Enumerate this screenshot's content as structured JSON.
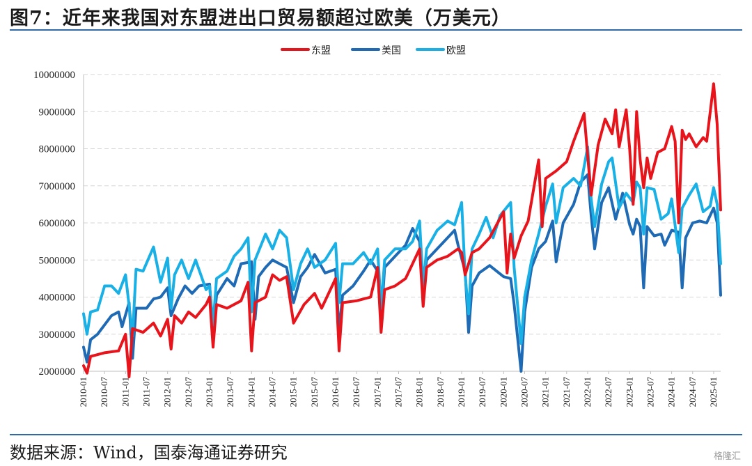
{
  "header": {
    "title": "图7：近年来我国对东盟进出口贸易额超过欧美（万美元）"
  },
  "footer": {
    "source": "数据来源：Wind，国泰海通证券研究",
    "watermark": "格隆汇"
  },
  "chart_data": {
    "type": "line",
    "ylim": [
      2000000,
      10000000
    ],
    "yticks": [
      "2000000",
      "3000000",
      "4000000",
      "5000000",
      "6000000",
      "7000000",
      "8000000",
      "9000000",
      "10000000"
    ],
    "xticks": [
      "2010-01",
      "2010-07",
      "2011-01",
      "2011-07",
      "2012-01",
      "2012-07",
      "2013-01",
      "2013-07",
      "2014-01",
      "2014-07",
      "2015-01",
      "2015-07",
      "2016-01",
      "2016-07",
      "2017-01",
      "2017-07",
      "2018-01",
      "2018-07",
      "2019-01",
      "2019-07",
      "2020-01",
      "2020-07",
      "2021-01",
      "2021-07",
      "2022-01",
      "2022-07",
      "2023-01",
      "2023-07",
      "2024-01",
      "2024-07",
      "2025-01"
    ],
    "grid": true,
    "legend_position": "top-center",
    "colors": {
      "asean": "#e8141b",
      "usa": "#1f6ab4",
      "eu": "#19b0e6"
    },
    "series": [
      {
        "name": "东盟",
        "key": "asean",
        "points": [
          [
            0,
            2150000
          ],
          [
            1,
            1950000
          ],
          [
            2,
            2400000
          ],
          [
            6,
            2500000
          ],
          [
            10,
            2550000
          ],
          [
            12,
            3000000
          ],
          [
            13,
            1850000
          ],
          [
            14,
            3150000
          ],
          [
            17,
            3050000
          ],
          [
            20,
            3300000
          ],
          [
            22,
            2950000
          ],
          [
            24,
            3400000
          ],
          [
            25,
            2600000
          ],
          [
            26,
            3500000
          ],
          [
            28,
            3300000
          ],
          [
            30,
            3600000
          ],
          [
            32,
            3450000
          ],
          [
            35,
            3800000
          ],
          [
            36,
            4000000
          ],
          [
            37,
            2650000
          ],
          [
            38,
            3800000
          ],
          [
            41,
            3700000
          ],
          [
            45,
            3900000
          ],
          [
            47,
            4400000
          ],
          [
            48,
            2550000
          ],
          [
            49,
            3850000
          ],
          [
            52,
            4000000
          ],
          [
            54,
            4600000
          ],
          [
            56,
            4450000
          ],
          [
            58,
            4550000
          ],
          [
            60,
            3300000
          ],
          [
            63,
            3800000
          ],
          [
            66,
            4100000
          ],
          [
            68,
            3700000
          ],
          [
            72,
            4500000
          ],
          [
            73,
            2550000
          ],
          [
            74,
            3850000
          ],
          [
            78,
            3900000
          ],
          [
            82,
            4000000
          ],
          [
            84,
            4800000
          ],
          [
            85,
            3050000
          ],
          [
            86,
            4200000
          ],
          [
            89,
            4300000
          ],
          [
            92,
            4500000
          ],
          [
            96,
            5300000
          ],
          [
            97,
            3750000
          ],
          [
            98,
            4800000
          ],
          [
            101,
            5000000
          ],
          [
            104,
            5100000
          ],
          [
            107,
            5300000
          ],
          [
            108,
            5200000
          ],
          [
            109,
            4600000
          ],
          [
            111,
            5200000
          ],
          [
            113,
            5300000
          ],
          [
            116,
            5600000
          ],
          [
            120,
            6300000
          ],
          [
            121,
            4650000
          ],
          [
            122,
            5700000
          ],
          [
            123,
            5050000
          ],
          [
            125,
            5650000
          ],
          [
            127,
            6050000
          ],
          [
            128,
            6600000
          ],
          [
            130,
            7700000
          ],
          [
            131,
            5900000
          ],
          [
            132,
            7200000
          ],
          [
            135,
            7400000
          ],
          [
            138,
            7650000
          ],
          [
            140,
            8200000
          ],
          [
            143,
            8950000
          ],
          [
            144,
            7800000
          ],
          [
            145,
            6750000
          ],
          [
            147,
            8100000
          ],
          [
            149,
            8800000
          ],
          [
            151,
            8400000
          ],
          [
            152,
            9050000
          ],
          [
            153,
            8050000
          ],
          [
            155,
            9050000
          ],
          [
            156,
            8000000
          ],
          [
            157,
            6500000
          ],
          [
            158,
            9000000
          ],
          [
            159,
            7700000
          ],
          [
            160,
            6950000
          ],
          [
            161,
            7750000
          ],
          [
            162,
            7200000
          ],
          [
            164,
            7900000
          ],
          [
            166,
            8000000
          ],
          [
            168,
            8600000
          ],
          [
            169,
            8200000
          ],
          [
            170,
            6000000
          ],
          [
            171,
            8500000
          ],
          [
            172,
            8250000
          ],
          [
            173,
            8400000
          ],
          [
            175,
            8050000
          ],
          [
            177,
            8300000
          ],
          [
            178,
            8200000
          ],
          [
            180,
            9750000
          ],
          [
            181,
            8650000
          ],
          [
            182,
            6350000
          ]
        ]
      },
      {
        "name": "美国",
        "key": "usa",
        "points": [
          [
            0,
            2650000
          ],
          [
            1,
            2250000
          ],
          [
            2,
            2850000
          ],
          [
            4,
            3000000
          ],
          [
            8,
            3500000
          ],
          [
            10,
            3600000
          ],
          [
            11,
            3200000
          ],
          [
            13,
            3850000
          ],
          [
            14,
            2350000
          ],
          [
            15,
            3700000
          ],
          [
            18,
            3700000
          ],
          [
            20,
            3950000
          ],
          [
            22,
            4000000
          ],
          [
            24,
            4250000
          ],
          [
            25,
            3500000
          ],
          [
            27,
            3950000
          ],
          [
            29,
            4300000
          ],
          [
            31,
            4100000
          ],
          [
            33,
            4300000
          ],
          [
            36,
            4350000
          ],
          [
            37,
            3050000
          ],
          [
            38,
            4050000
          ],
          [
            41,
            4500000
          ],
          [
            43,
            4300000
          ],
          [
            45,
            4900000
          ],
          [
            48,
            4950000
          ],
          [
            49,
            3400000
          ],
          [
            50,
            4550000
          ],
          [
            52,
            4800000
          ],
          [
            54,
            5000000
          ],
          [
            56,
            4900000
          ],
          [
            58,
            4800000
          ],
          [
            60,
            3850000
          ],
          [
            62,
            4550000
          ],
          [
            64,
            4800000
          ],
          [
            66,
            5150000
          ],
          [
            69,
            4650000
          ],
          [
            72,
            4750000
          ],
          [
            73,
            3050000
          ],
          [
            74,
            4050000
          ],
          [
            77,
            4300000
          ],
          [
            80,
            4700000
          ],
          [
            82,
            5000000
          ],
          [
            84,
            4700000
          ],
          [
            85,
            3300000
          ],
          [
            86,
            4800000
          ],
          [
            89,
            5100000
          ],
          [
            92,
            5400000
          ],
          [
            94,
            5850000
          ],
          [
            96,
            5500000
          ],
          [
            97,
            4350000
          ],
          [
            98,
            5000000
          ],
          [
            101,
            5300000
          ],
          [
            104,
            5600000
          ],
          [
            106,
            5800000
          ],
          [
            107,
            5400000
          ],
          [
            109,
            4700000
          ],
          [
            110,
            3050000
          ],
          [
            111,
            4300000
          ],
          [
            113,
            4650000
          ],
          [
            116,
            4850000
          ],
          [
            118,
            4700000
          ],
          [
            120,
            4550000
          ],
          [
            122,
            4500000
          ],
          [
            123,
            3800000
          ],
          [
            125,
            2000000
          ],
          [
            126,
            3600000
          ],
          [
            128,
            4800000
          ],
          [
            130,
            5300000
          ],
          [
            132,
            5500000
          ],
          [
            134,
            6050000
          ],
          [
            135,
            4950000
          ],
          [
            137,
            6000000
          ],
          [
            140,
            6500000
          ],
          [
            142,
            7100000
          ],
          [
            144,
            7300000
          ],
          [
            145,
            6200000
          ],
          [
            146,
            5300000
          ],
          [
            148,
            6550000
          ],
          [
            150,
            6950000
          ],
          [
            152,
            6100000
          ],
          [
            154,
            6800000
          ],
          [
            156,
            5950000
          ],
          [
            157,
            5700000
          ],
          [
            158,
            6100000
          ],
          [
            159,
            5900000
          ],
          [
            160,
            4250000
          ],
          [
            161,
            5900000
          ],
          [
            163,
            5650000
          ],
          [
            165,
            5700000
          ],
          [
            166,
            5400000
          ],
          [
            168,
            5800000
          ],
          [
            170,
            5750000
          ],
          [
            171,
            4250000
          ],
          [
            172,
            5600000
          ],
          [
            174,
            6000000
          ],
          [
            176,
            6050000
          ],
          [
            178,
            6000000
          ],
          [
            180,
            6400000
          ],
          [
            181,
            6000000
          ],
          [
            182,
            4050000
          ]
        ]
      },
      {
        "name": "欧盟",
        "key": "eu",
        "points": [
          [
            0,
            3550000
          ],
          [
            1,
            3000000
          ],
          [
            2,
            3600000
          ],
          [
            4,
            3650000
          ],
          [
            6,
            4300000
          ],
          [
            8,
            4300000
          ],
          [
            10,
            4100000
          ],
          [
            12,
            4600000
          ],
          [
            14,
            2950000
          ],
          [
            15,
            4750000
          ],
          [
            17,
            4700000
          ],
          [
            20,
            5350000
          ],
          [
            22,
            4400000
          ],
          [
            24,
            5050000
          ],
          [
            25,
            3700000
          ],
          [
            26,
            4600000
          ],
          [
            28,
            5000000
          ],
          [
            30,
            4500000
          ],
          [
            32,
            5000000
          ],
          [
            35,
            4200000
          ],
          [
            36,
            4300000
          ],
          [
            37,
            3250000
          ],
          [
            38,
            4500000
          ],
          [
            41,
            4700000
          ],
          [
            43,
            5100000
          ],
          [
            45,
            5300000
          ],
          [
            47,
            5600000
          ],
          [
            48,
            3600000
          ],
          [
            49,
            5000000
          ],
          [
            52,
            5700000
          ],
          [
            54,
            5300000
          ],
          [
            56,
            5800000
          ],
          [
            58,
            5600000
          ],
          [
            60,
            4200000
          ],
          [
            62,
            4900000
          ],
          [
            64,
            5300000
          ],
          [
            66,
            4800000
          ],
          [
            69,
            5000000
          ],
          [
            72,
            5450000
          ],
          [
            73,
            3850000
          ],
          [
            74,
            4900000
          ],
          [
            77,
            4900000
          ],
          [
            80,
            5200000
          ],
          [
            82,
            4900000
          ],
          [
            84,
            5300000
          ],
          [
            85,
            3700000
          ],
          [
            86,
            5000000
          ],
          [
            89,
            5300000
          ],
          [
            92,
            5300000
          ],
          [
            94,
            5500000
          ],
          [
            96,
            6050000
          ],
          [
            97,
            4300000
          ],
          [
            98,
            5300000
          ],
          [
            101,
            5800000
          ],
          [
            104,
            6050000
          ],
          [
            106,
            5950000
          ],
          [
            108,
            6550000
          ],
          [
            109,
            4600000
          ],
          [
            110,
            3550000
          ],
          [
            111,
            5300000
          ],
          [
            113,
            5700000
          ],
          [
            115,
            6150000
          ],
          [
            117,
            5600000
          ],
          [
            119,
            6200000
          ],
          [
            122,
            6550000
          ],
          [
            123,
            4800000
          ],
          [
            125,
            2750000
          ],
          [
            126,
            4000000
          ],
          [
            128,
            5000000
          ],
          [
            130,
            5700000
          ],
          [
            132,
            6450000
          ],
          [
            134,
            7050000
          ],
          [
            135,
            6000000
          ],
          [
            137,
            6950000
          ],
          [
            140,
            7200000
          ],
          [
            142,
            7000000
          ],
          [
            144,
            8050000
          ],
          [
            145,
            6650000
          ],
          [
            146,
            5900000
          ],
          [
            148,
            7050000
          ],
          [
            150,
            7650000
          ],
          [
            151,
            7750000
          ],
          [
            153,
            6400000
          ],
          [
            155,
            6800000
          ],
          [
            157,
            6550000
          ],
          [
            158,
            7100000
          ],
          [
            159,
            6950000
          ],
          [
            160,
            5700000
          ],
          [
            161,
            6950000
          ],
          [
            163,
            6900000
          ],
          [
            165,
            6100000
          ],
          [
            167,
            6250000
          ],
          [
            168,
            6650000
          ],
          [
            170,
            5200000
          ],
          [
            171,
            6400000
          ],
          [
            173,
            6750000
          ],
          [
            175,
            7050000
          ],
          [
            177,
            6300000
          ],
          [
            179,
            6450000
          ],
          [
            180,
            6950000
          ],
          [
            181,
            6500000
          ],
          [
            182,
            4900000
          ]
        ]
      }
    ]
  }
}
